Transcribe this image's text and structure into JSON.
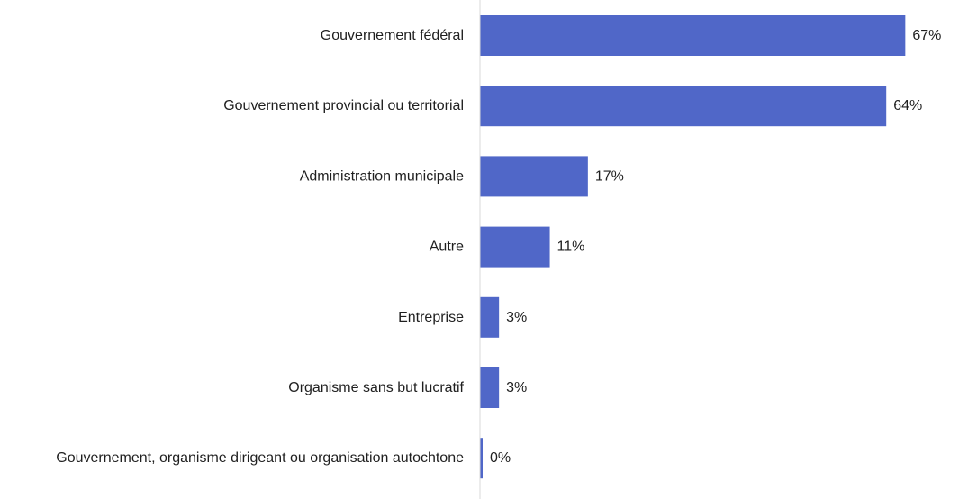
{
  "chart_data": {
    "type": "bar",
    "orientation": "horizontal",
    "title": "",
    "xlabel": "",
    "ylabel": "",
    "categories": [
      "Gouvernement fédéral",
      "Gouvernement provincial ou territorial",
      "Administration municipale",
      "Autre",
      "Entreprise",
      "Organisme sans but lucratif",
      "Gouvernement, organisme dirigeant ou organisation autochtone"
    ],
    "values": [
      67,
      64,
      17,
      11,
      3,
      3,
      0
    ],
    "value_labels": [
      "67%",
      "64%",
      "17%",
      "11%",
      "3%",
      "3%",
      "0%"
    ],
    "xlim": [
      0,
      100
    ],
    "grid": false,
    "legend": "none",
    "bar_color": "#5067c8",
    "axis_color": "#d9d9d9"
  }
}
